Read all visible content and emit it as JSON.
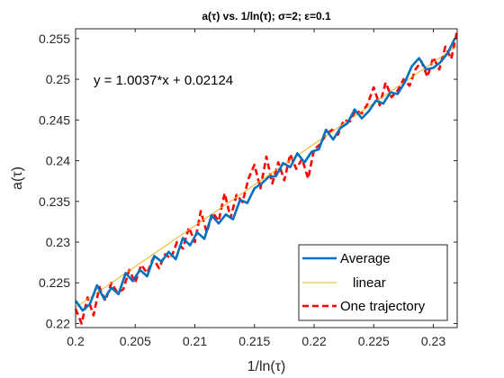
{
  "chart_data": {
    "type": "line",
    "title": "a(τ) vs. 1/ln(τ); σ=2; ε=0.1",
    "xlabel": "1/ln(τ)",
    "ylabel": "a(τ)",
    "xlim": [
      0.2,
      0.232
    ],
    "ylim": [
      0.2195,
      0.2562
    ],
    "xticks": [
      0.2,
      0.205,
      0.21,
      0.215,
      0.22,
      0.225,
      0.23
    ],
    "xtick_labels": [
      "0.2",
      "0.205",
      "0.21",
      "0.215",
      "0.22",
      "0.225",
      "0.23"
    ],
    "yticks": [
      0.22,
      0.225,
      0.23,
      0.235,
      0.24,
      0.245,
      0.25,
      0.255
    ],
    "ytick_labels": [
      "0.22",
      "0.225",
      "0.23",
      "0.235",
      "0.24",
      "0.245",
      "0.25",
      "0.255"
    ],
    "grid": false,
    "legend_position": "bottom-right",
    "annotation": "y = 1.0037*x + 0.02124",
    "series": [
      {
        "name": "Average",
        "color": "#0072BD",
        "style": "solid",
        "x": [
          0.2,
          0.2006,
          0.2012,
          0.2018,
          0.2024,
          0.203,
          0.2036,
          0.2042,
          0.2048,
          0.2054,
          0.206,
          0.2066,
          0.2072,
          0.2078,
          0.2084,
          0.209,
          0.2096,
          0.2102,
          0.2108,
          0.2114,
          0.212,
          0.2126,
          0.2132,
          0.2138,
          0.2144,
          0.215,
          0.2156,
          0.2162,
          0.2168,
          0.2174,
          0.218,
          0.2186,
          0.2192,
          0.2198,
          0.2204,
          0.221,
          0.2216,
          0.2222,
          0.2228,
          0.2234,
          0.224,
          0.2246,
          0.2252,
          0.2258,
          0.2264,
          0.227,
          0.2276,
          0.2282,
          0.2288,
          0.2294,
          0.23,
          0.2306,
          0.2312,
          0.2318
        ],
        "y": [
          0.2228,
          0.2216,
          0.2224,
          0.2247,
          0.223,
          0.2244,
          0.2236,
          0.2262,
          0.2252,
          0.2266,
          0.2258,
          0.2283,
          0.2276,
          0.2288,
          0.2279,
          0.2305,
          0.2296,
          0.2312,
          0.2304,
          0.2333,
          0.2323,
          0.2334,
          0.2328,
          0.2352,
          0.2348,
          0.2366,
          0.2372,
          0.238,
          0.2381,
          0.2397,
          0.2392,
          0.2409,
          0.2398,
          0.2411,
          0.2414,
          0.2438,
          0.2426,
          0.244,
          0.2446,
          0.2463,
          0.2452,
          0.2461,
          0.2474,
          0.247,
          0.2484,
          0.2482,
          0.2496,
          0.2516,
          0.2526,
          0.2512,
          0.2514,
          0.2521,
          0.2532,
          0.255
        ]
      },
      {
        "name": "linear",
        "color": "#EDB120",
        "style": "solid",
        "x": [
          0.2,
          0.232
        ],
        "y": [
          0.22198,
          0.2541
        ]
      },
      {
        "name": "One trajectory",
        "color": "#FF0000",
        "style": "dashed",
        "x": [
          0.2,
          0.2005,
          0.201,
          0.2015,
          0.202,
          0.2025,
          0.203,
          0.2035,
          0.204,
          0.2045,
          0.205,
          0.2055,
          0.206,
          0.2065,
          0.207,
          0.2075,
          0.208,
          0.2085,
          0.209,
          0.2095,
          0.21,
          0.2105,
          0.211,
          0.2115,
          0.212,
          0.2125,
          0.213,
          0.2135,
          0.214,
          0.2145,
          0.215,
          0.2155,
          0.216,
          0.2165,
          0.217,
          0.2175,
          0.218,
          0.2185,
          0.219,
          0.2195,
          0.22,
          0.2205,
          0.221,
          0.2215,
          0.222,
          0.2225,
          0.223,
          0.2235,
          0.224,
          0.2245,
          0.225,
          0.2255,
          0.226,
          0.2265,
          0.227,
          0.2275,
          0.228,
          0.2285,
          0.229,
          0.2295,
          0.23,
          0.2305,
          0.231,
          0.2315,
          0.232
        ],
        "y": [
          0.2218,
          0.22,
          0.2232,
          0.221,
          0.2245,
          0.2228,
          0.225,
          0.2238,
          0.2242,
          0.2266,
          0.225,
          0.2272,
          0.2262,
          0.228,
          0.2268,
          0.2285,
          0.228,
          0.23,
          0.2292,
          0.2318,
          0.23,
          0.2338,
          0.2312,
          0.2336,
          0.2326,
          0.236,
          0.233,
          0.2358,
          0.2349,
          0.2378,
          0.2395,
          0.2366,
          0.2405,
          0.2372,
          0.2398,
          0.2376,
          0.2408,
          0.239,
          0.2402,
          0.2378,
          0.2414,
          0.242,
          0.2432,
          0.2438,
          0.2432,
          0.245,
          0.2448,
          0.2462,
          0.2458,
          0.247,
          0.249,
          0.2468,
          0.2496,
          0.2478,
          0.2486,
          0.25,
          0.2492,
          0.2512,
          0.2522,
          0.2503,
          0.2527,
          0.2512,
          0.254,
          0.2525,
          0.256
        ]
      }
    ]
  }
}
